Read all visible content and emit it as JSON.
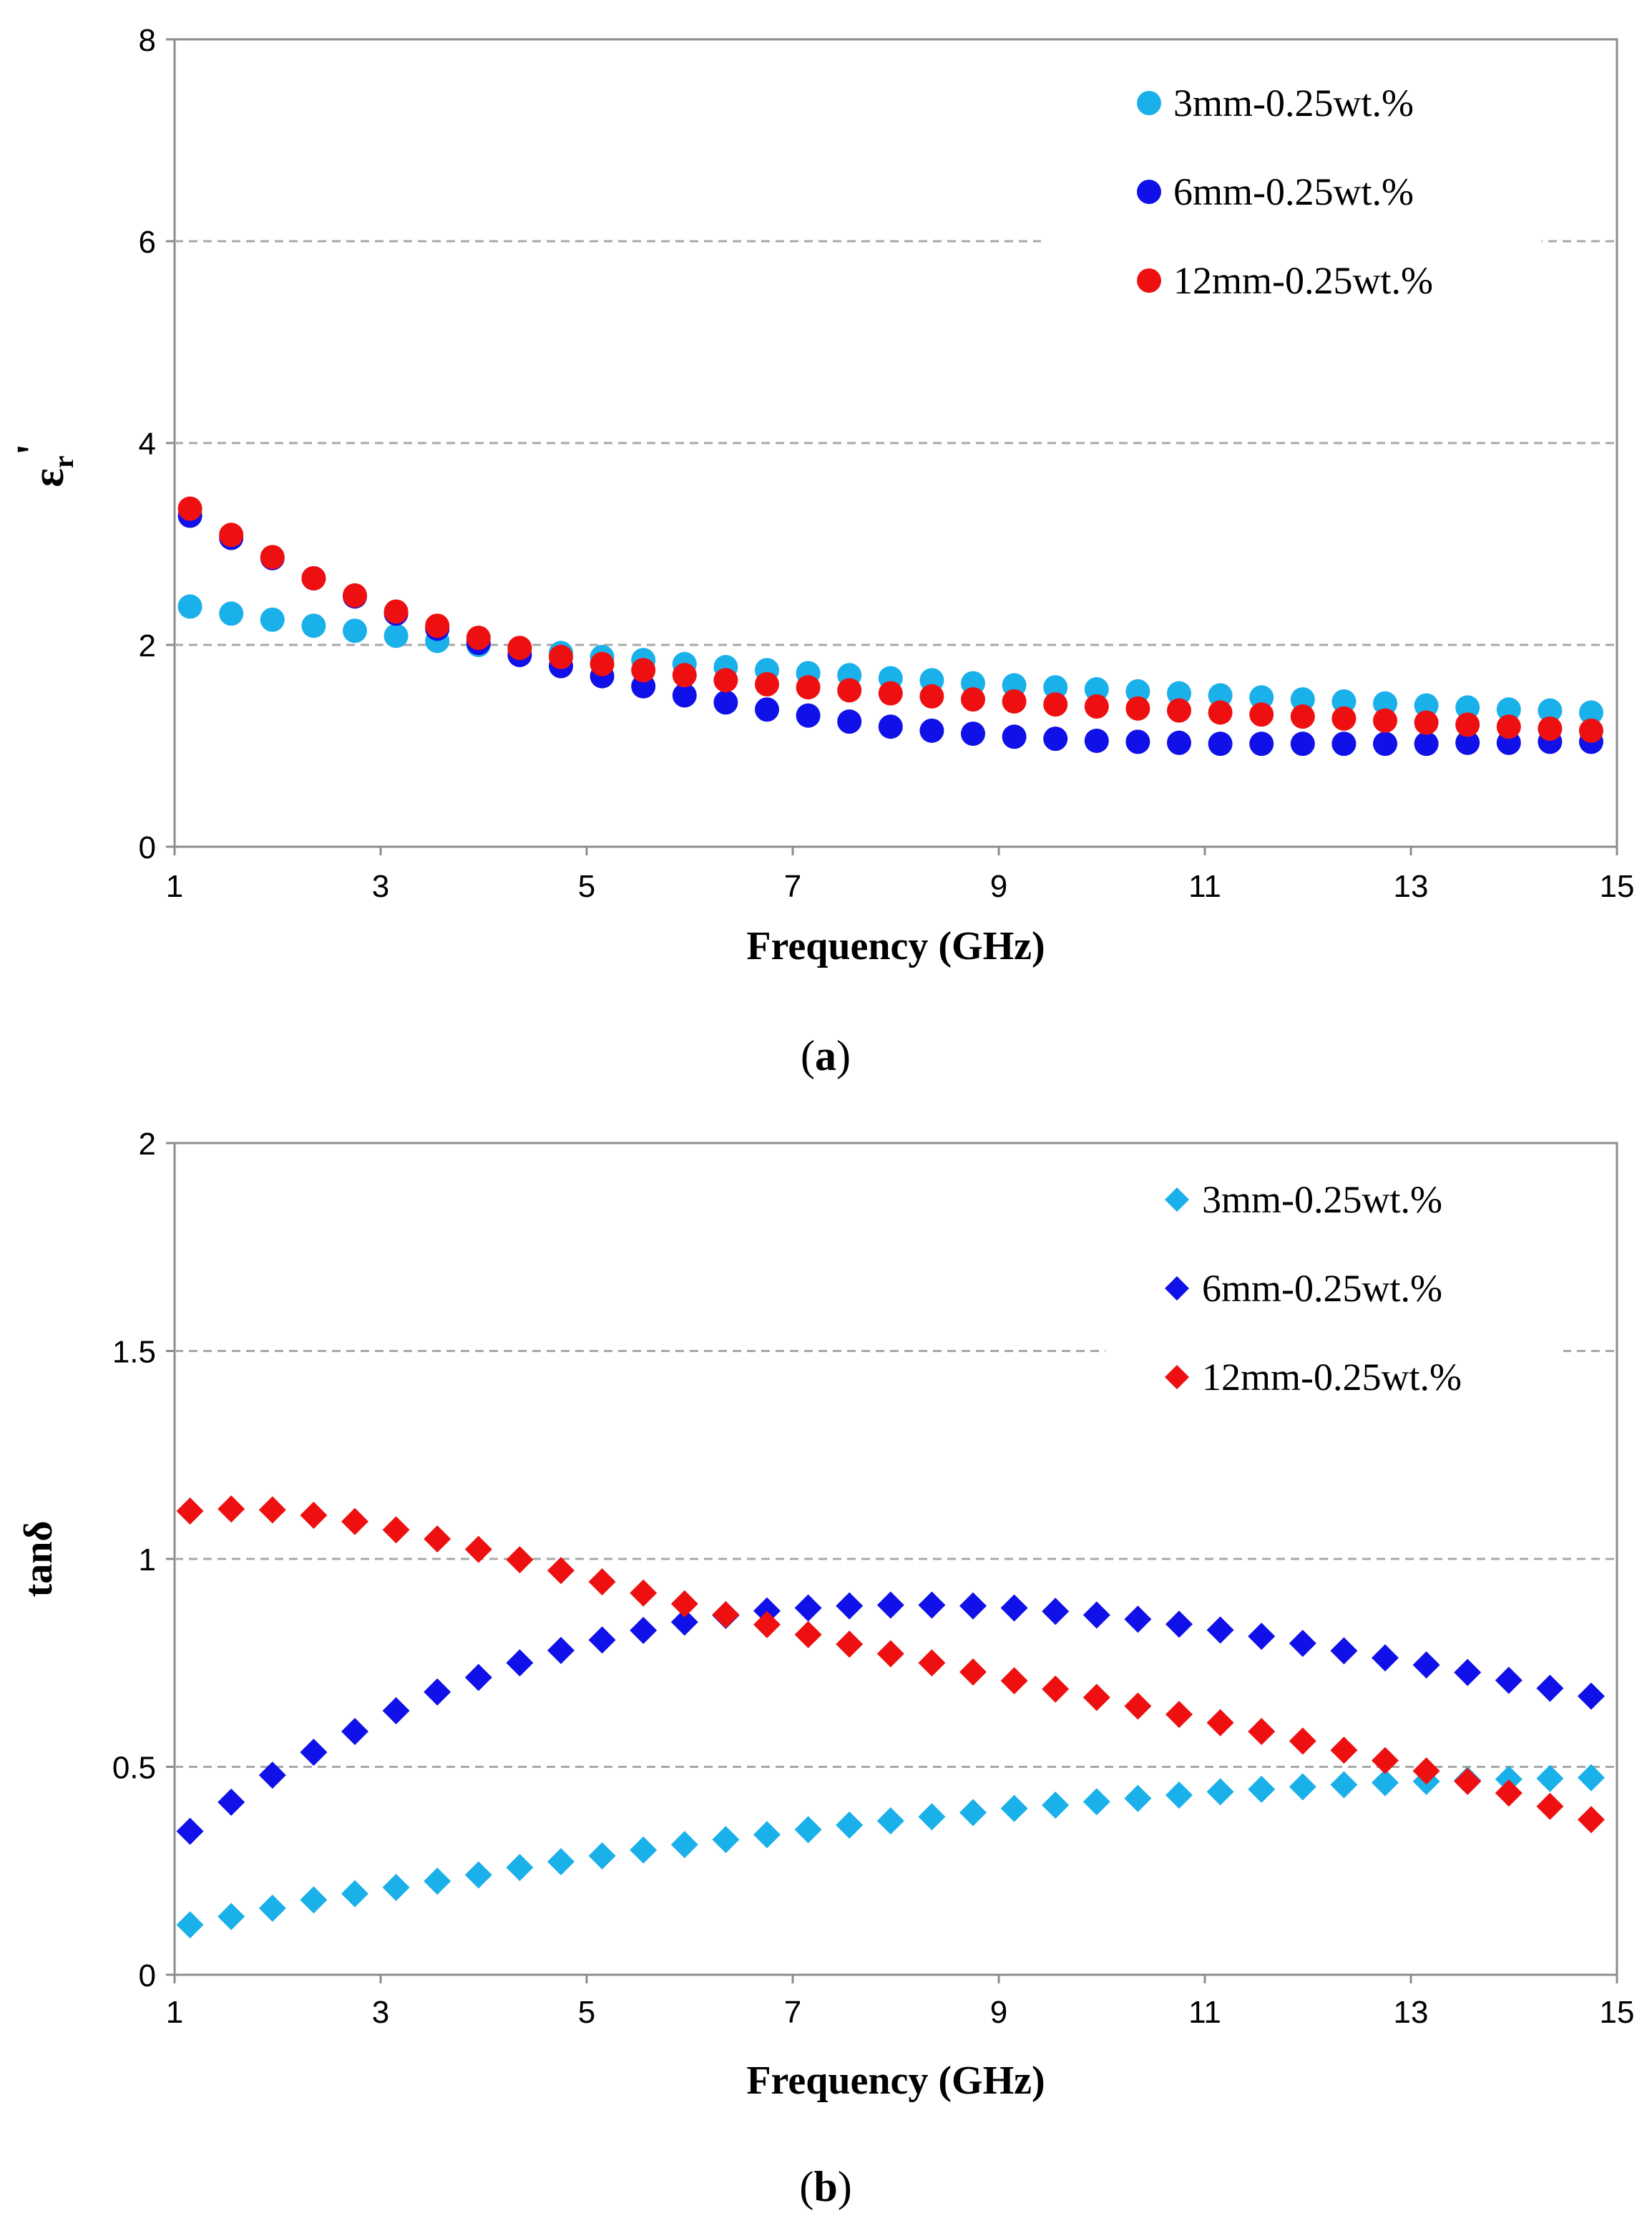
{
  "chart_data": [
    {
      "type": "scatter",
      "panel_label": "a",
      "marker": "circle",
      "ylabel_main": "ε",
      "ylabel_sub": "r",
      "ylabel_prime": "'",
      "xlabel": "Frequency (GHz)",
      "xlim": [
        1,
        15
      ],
      "ylim": [
        0,
        8
      ],
      "xticks": [
        "1",
        "3",
        "5",
        "7",
        "9",
        "11",
        "13",
        "15"
      ],
      "yticks": [
        "0",
        "2",
        "4",
        "6",
        "8"
      ],
      "grid": "horizontal dashed",
      "legend_position": "top-right",
      "x": [
        1.15,
        1.55,
        1.95,
        2.35,
        2.75,
        3.15,
        3.55,
        3.95,
        4.35,
        4.75,
        5.15,
        5.55,
        5.95,
        6.35,
        6.75,
        7.15,
        7.55,
        7.95,
        8.35,
        8.75,
        9.15,
        9.55,
        9.95,
        10.35,
        10.75,
        11.15,
        11.55,
        11.95,
        12.35,
        12.75,
        13.15,
        13.55,
        13.95,
        14.35,
        14.75
      ],
      "series": [
        {
          "name": "3mm-0.25wt.%",
          "color": "#1ab0ea",
          "values": [
            2.38,
            2.31,
            2.25,
            2.19,
            2.14,
            2.09,
            2.04,
            2.0,
            1.96,
            1.92,
            1.88,
            1.85,
            1.81,
            1.78,
            1.75,
            1.72,
            1.7,
            1.67,
            1.65,
            1.62,
            1.6,
            1.58,
            1.56,
            1.54,
            1.52,
            1.5,
            1.48,
            1.46,
            1.44,
            1.42,
            1.4,
            1.38,
            1.36,
            1.35,
            1.33
          ]
        },
        {
          "name": "6mm-0.25wt.%",
          "color": "#1010e8",
          "values": [
            3.28,
            3.06,
            2.86,
            2.66,
            2.48,
            2.31,
            2.16,
            2.02,
            1.9,
            1.79,
            1.69,
            1.59,
            1.5,
            1.43,
            1.36,
            1.3,
            1.24,
            1.19,
            1.15,
            1.12,
            1.09,
            1.07,
            1.05,
            1.04,
            1.03,
            1.02,
            1.02,
            1.02,
            1.02,
            1.02,
            1.02,
            1.03,
            1.03,
            1.04,
            1.04
          ]
        },
        {
          "name": "12mm-0.25wt.%",
          "color": "#ee1010",
          "values": [
            3.35,
            3.09,
            2.87,
            2.66,
            2.49,
            2.33,
            2.19,
            2.07,
            1.97,
            1.88,
            1.81,
            1.75,
            1.7,
            1.65,
            1.61,
            1.58,
            1.55,
            1.52,
            1.49,
            1.46,
            1.44,
            1.41,
            1.39,
            1.37,
            1.35,
            1.33,
            1.31,
            1.29,
            1.27,
            1.25,
            1.23,
            1.21,
            1.19,
            1.17,
            1.15
          ]
        }
      ]
    },
    {
      "type": "scatter",
      "panel_label": "b",
      "marker": "diamond",
      "ylabel_main": "tanδ",
      "xlabel": "Frequency (GHz)",
      "xlim": [
        1,
        15
      ],
      "ylim": [
        0,
        2
      ],
      "xticks": [
        "1",
        "3",
        "5",
        "7",
        "9",
        "11",
        "13",
        "15"
      ],
      "yticks": [
        "0",
        "0.5",
        "1",
        "1.5",
        "2"
      ],
      "grid": "horizontal dashed",
      "legend_position": "top-right",
      "x": [
        1.15,
        1.55,
        1.95,
        2.35,
        2.75,
        3.15,
        3.55,
        3.95,
        4.35,
        4.75,
        5.15,
        5.55,
        5.95,
        6.35,
        6.75,
        7.15,
        7.55,
        7.95,
        8.35,
        8.75,
        9.15,
        9.55,
        9.95,
        10.35,
        10.75,
        11.15,
        11.55,
        11.95,
        12.35,
        12.75,
        13.15,
        13.55,
        13.95,
        14.35,
        14.75
      ],
      "series": [
        {
          "name": "3mm-0.25wt.%",
          "color": "#1ab0ea",
          "values": [
            0.12,
            0.14,
            0.16,
            0.18,
            0.195,
            0.21,
            0.225,
            0.24,
            0.258,
            0.272,
            0.286,
            0.3,
            0.313,
            0.325,
            0.337,
            0.349,
            0.36,
            0.37,
            0.38,
            0.39,
            0.4,
            0.408,
            0.416,
            0.424,
            0.432,
            0.44,
            0.446,
            0.452,
            0.457,
            0.462,
            0.465,
            0.468,
            0.47,
            0.472,
            0.474
          ]
        },
        {
          "name": "6mm-0.25wt.%",
          "color": "#1010e8",
          "values": [
            0.345,
            0.415,
            0.48,
            0.535,
            0.585,
            0.635,
            0.68,
            0.715,
            0.75,
            0.78,
            0.805,
            0.828,
            0.848,
            0.864,
            0.875,
            0.882,
            0.887,
            0.889,
            0.889,
            0.887,
            0.882,
            0.874,
            0.865,
            0.855,
            0.843,
            0.829,
            0.814,
            0.797,
            0.779,
            0.762,
            0.745,
            0.727,
            0.708,
            0.689,
            0.67
          ]
        },
        {
          "name": "12mm-0.25wt.%",
          "color": "#ee1010",
          "values": [
            1.115,
            1.12,
            1.118,
            1.105,
            1.09,
            1.07,
            1.048,
            1.023,
            0.998,
            0.972,
            0.945,
            0.918,
            0.892,
            0.866,
            0.842,
            0.818,
            0.795,
            0.772,
            0.75,
            0.728,
            0.707,
            0.687,
            0.667,
            0.646,
            0.626,
            0.606,
            0.585,
            0.562,
            0.54,
            0.515,
            0.49,
            0.465,
            0.437,
            0.405,
            0.373
          ]
        }
      ]
    }
  ]
}
